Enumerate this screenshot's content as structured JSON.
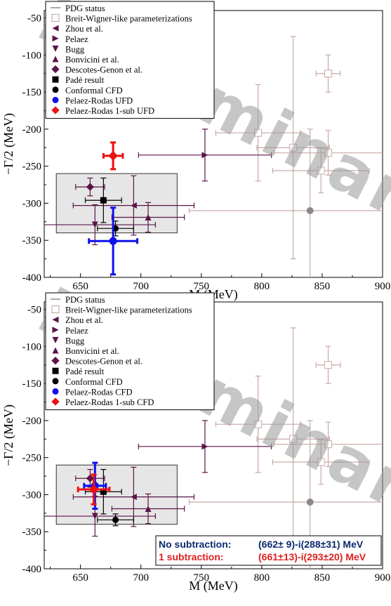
{
  "colors": {
    "pdg_line": "#6b4a5a",
    "bw_light": "#c9a9a6",
    "maroon": "#5b1448",
    "black": "#000000",
    "blue": "#1010ee",
    "red": "#ee1010",
    "box_fill": "#e6e6e6",
    "watermark": "#999999"
  },
  "chart_data": [
    {
      "type": "scatter",
      "xlabel": "M (MeV)",
      "ylabel": "−Γ/2 (MeV)",
      "xlim": [
        620,
        900
      ],
      "ylim": [
        -400,
        -40
      ],
      "xticks": [
        "650",
        "700",
        "750",
        "800",
        "850",
        "900"
      ],
      "yticks": [
        "-50",
        "-100",
        "-150",
        "-200",
        "-250",
        "-300",
        "-350",
        "-400"
      ],
      "watermark": "Preliminary",
      "pdg_box": {
        "x": [
          630,
          730
        ],
        "y": [
          -340,
          -260
        ]
      },
      "legend": [
        {
          "label": "PDG status",
          "marker": "line"
        },
        {
          "label": "Breit-Wigner-like parameterizations",
          "marker": "open-square"
        },
        {
          "label": "Zhou et al.",
          "marker": "triangle-left"
        },
        {
          "label": "Pelaez",
          "marker": "triangle-right"
        },
        {
          "label": "Bugg",
          "marker": "triangle-down"
        },
        {
          "label": "Bonvicini et al.",
          "marker": "triangle-up"
        },
        {
          "label": "Descotes-Genon et al.",
          "marker": "diamond"
        },
        {
          "label": "Padé result",
          "marker": "square"
        },
        {
          "label": "Conformal CFD",
          "marker": "circle"
        },
        {
          "label": "Pelaez-Rodas UFD",
          "marker": "circle-blue"
        },
        {
          "label": "Pelaez-Rodas 1-sub UFD",
          "marker": "diamond-red"
        }
      ],
      "series": [
        {
          "name": "Breit-Wigner-like parameterizations",
          "points": [
            {
              "x": 855,
              "y": -125,
              "xerr": 10,
              "yerr": 25
            },
            {
              "x": 826,
              "y": -225,
              "xerr": 30,
              "yerr": 150
            },
            {
              "x": 855,
              "y": -232,
              "xerr": 45,
              "yerr": 30
            },
            {
              "x": 849,
              "y": -256,
              "xerr": 40,
              "yerr": 30
            },
            {
              "x": 797,
              "y": -205,
              "xerr": 35,
              "yerr": 65
            },
            {
              "x": 840,
              "y": -310,
              "xerr": 100,
              "yerr": 110
            }
          ]
        },
        {
          "name": "Zhou et al.",
          "points": [
            {
              "x": 694,
              "y": -303,
              "xerr": 50,
              "yerr": 40
            }
          ]
        },
        {
          "name": "Pelaez",
          "points": [
            {
              "x": 753,
              "y": -235,
              "xerr": 55,
              "yerr": 35
            }
          ]
        },
        {
          "name": "Bugg",
          "points": [
            {
              "x": 662,
              "y": -329,
              "xerr": 50,
              "yerr": 27
            }
          ]
        },
        {
          "name": "Bonvicini et al.",
          "points": [
            {
              "x": 706,
              "y": -319,
              "xerr": 30,
              "yerr": 20
            }
          ]
        },
        {
          "name": "Descotes-Genon et al.",
          "points": [
            {
              "x": 658,
              "y": -278,
              "xerr": 12,
              "yerr": 12
            }
          ]
        },
        {
          "name": "Padé result",
          "points": [
            {
              "x": 669,
              "y": -296,
              "xerr": 15,
              "yerr": 30
            }
          ]
        },
        {
          "name": "Conformal CFD",
          "points": [
            {
              "x": 679,
              "y": -334,
              "xerr": 15,
              "yerr": 10
            }
          ]
        },
        {
          "name": "Pelaez-Rodas UFD",
          "points": [
            {
              "x": 677,
              "y": -351,
              "xerr": 20,
              "yerr": 45
            }
          ]
        },
        {
          "name": "Pelaez-Rodas 1-sub UFD",
          "points": [
            {
              "x": 677,
              "y": -236,
              "xerr": 8,
              "yerr": 18
            }
          ]
        }
      ]
    },
    {
      "type": "scatter",
      "xlabel": "M (MeV)",
      "ylabel": "−Γ/2 (MeV)",
      "xlim": [
        620,
        900
      ],
      "ylim": [
        -400,
        -40
      ],
      "xticks": [
        "650",
        "700",
        "750",
        "800",
        "850",
        "900"
      ],
      "yticks": [
        "-50",
        "-100",
        "-150",
        "-200",
        "-250",
        "-300",
        "-350",
        "-400"
      ],
      "watermark": "Preliminary",
      "pdg_box": {
        "x": [
          630,
          730
        ],
        "y": [
          -340,
          -260
        ]
      },
      "legend": [
        {
          "label": "PDG status",
          "marker": "line"
        },
        {
          "label": "Breit-Wigner-like parameterizations",
          "marker": "open-square"
        },
        {
          "label": "Zhou et al.",
          "marker": "triangle-left"
        },
        {
          "label": "Pelaez",
          "marker": "triangle-right"
        },
        {
          "label": "Bugg",
          "marker": "triangle-down"
        },
        {
          "label": "Bonvicini et al.",
          "marker": "triangle-up"
        },
        {
          "label": "Descotes-Genon et al.",
          "marker": "diamond"
        },
        {
          "label": "Padé result",
          "marker": "square"
        },
        {
          "label": "Conformal CFD",
          "marker": "circle"
        },
        {
          "label": "Pelaez-Rodas CFD",
          "marker": "circle-blue"
        },
        {
          "label": "Pelaez-Rodas 1-sub CFD",
          "marker": "diamond-red"
        }
      ],
      "results": [
        {
          "label": "No subtraction:",
          "value": "(662±  9)-i(288±31) MeV"
        },
        {
          "label": "1 subtraction:",
          "value": "(661±13)-i(293±20) MeV"
        }
      ],
      "series": [
        {
          "name": "Breit-Wigner-like parameterizations",
          "points": [
            {
              "x": 855,
              "y": -125,
              "xerr": 10,
              "yerr": 25
            },
            {
              "x": 826,
              "y": -225,
              "xerr": 30,
              "yerr": 150
            },
            {
              "x": 855,
              "y": -232,
              "xerr": 45,
              "yerr": 30
            },
            {
              "x": 849,
              "y": -256,
              "xerr": 40,
              "yerr": 30
            },
            {
              "x": 797,
              "y": -205,
              "xerr": 35,
              "yerr": 65
            },
            {
              "x": 840,
              "y": -310,
              "xerr": 100,
              "yerr": 110
            }
          ]
        },
        {
          "name": "Zhou et al.",
          "points": [
            {
              "x": 694,
              "y": -303,
              "xerr": 50,
              "yerr": 40
            }
          ]
        },
        {
          "name": "Pelaez",
          "points": [
            {
              "x": 753,
              "y": -235,
              "xerr": 55,
              "yerr": 35
            }
          ]
        },
        {
          "name": "Bugg",
          "points": [
            {
              "x": 662,
              "y": -329,
              "xerr": 50,
              "yerr": 27
            }
          ]
        },
        {
          "name": "Bonvicini et al.",
          "points": [
            {
              "x": 706,
              "y": -319,
              "xerr": 30,
              "yerr": 20
            }
          ]
        },
        {
          "name": "Descotes-Genon et al.",
          "points": [
            {
              "x": 658,
              "y": -278,
              "xerr": 12,
              "yerr": 12
            }
          ]
        },
        {
          "name": "Padé result",
          "points": [
            {
              "x": 669,
              "y": -296,
              "xerr": 15,
              "yerr": 30
            }
          ]
        },
        {
          "name": "Conformal CFD",
          "points": [
            {
              "x": 679,
              "y": -334,
              "xerr": 15,
              "yerr": 8
            }
          ]
        },
        {
          "name": "Pelaez-Rodas CFD",
          "points": [
            {
              "x": 662,
              "y": -288,
              "xerr": 9,
              "yerr": 31
            }
          ]
        },
        {
          "name": "Pelaez-Rodas 1-sub CFD",
          "points": [
            {
              "x": 661,
              "y": -293,
              "xerr": 13,
              "yerr": 20
            }
          ]
        }
      ]
    }
  ]
}
